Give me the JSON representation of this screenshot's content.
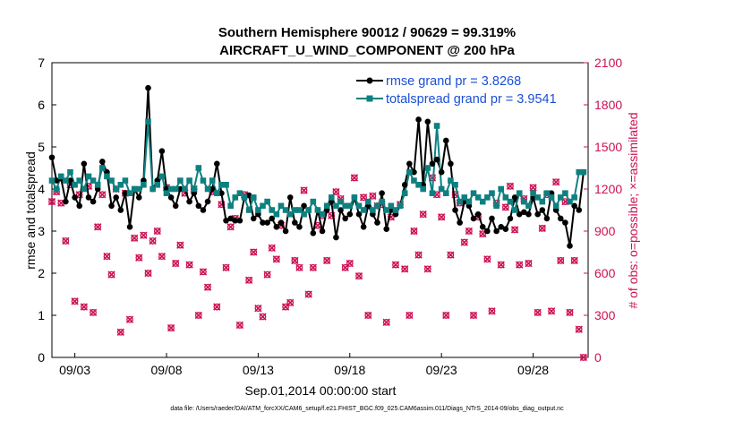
{
  "chart_data": {
    "type": "line",
    "title": "Southern Hemisphere 90012 / 90629 = 99.319%",
    "subtitle": "AIRCRAFT_U_WIND_COMPONENT @ 200 hPa",
    "xlabel": "Sep.01,2014 00:00:00 start",
    "ylabel": "rmse and totalspread",
    "ylabel_right": "# of obs: o=possible; ×=assimilated",
    "ylim": [
      0,
      7
    ],
    "ylim_right": [
      0,
      2100
    ],
    "yticks": [
      "0",
      "1",
      "2",
      "3",
      "4",
      "5",
      "6",
      "7"
    ],
    "yticks_right": [
      "0",
      "300",
      "600",
      "900",
      "1200",
      "1500",
      "1800",
      "2100"
    ],
    "xticks": [
      {
        "day": 3,
        "label": "09/03"
      },
      {
        "day": 8,
        "label": "09/08"
      },
      {
        "day": 13,
        "label": "09/13"
      },
      {
        "day": 18,
        "label": "09/18"
      },
      {
        "day": 23,
        "label": "09/23"
      },
      {
        "day": 28,
        "label": "09/28"
      }
    ],
    "xlim": [
      1.75,
      31.0
    ],
    "footnote": "data file: /Users/raeder/DAI/ATM_forcXX/CAM6_setup/f.e21.FHIST_BGC.f09_025.CAM6assim.011/Diags_NTrS_2014-09/obs_diag_output.nc",
    "colors": {
      "rmse": "#000000",
      "spread": "#0e8080",
      "obs": "#cc1155",
      "legend_text": "#1a4fd6"
    },
    "x": [
      1.75,
      2.0,
      2.25,
      2.5,
      2.75,
      3.0,
      3.25,
      3.5,
      3.75,
      4.0,
      4.25,
      4.5,
      4.75,
      5.0,
      5.25,
      5.5,
      5.75,
      6.0,
      6.25,
      6.5,
      6.75,
      7.0,
      7.25,
      7.5,
      7.75,
      8.0,
      8.25,
      8.5,
      8.75,
      9.0,
      9.25,
      9.5,
      9.75,
      10.0,
      10.25,
      10.5,
      10.75,
      11.0,
      11.25,
      11.5,
      11.75,
      12.0,
      12.25,
      12.5,
      12.75,
      13.0,
      13.25,
      13.5,
      13.75,
      14.0,
      14.25,
      14.5,
      14.75,
      15.0,
      15.25,
      15.5,
      15.75,
      16.0,
      16.25,
      16.5,
      16.75,
      17.0,
      17.25,
      17.5,
      17.75,
      18.0,
      18.25,
      18.5,
      18.75,
      19.0,
      19.25,
      19.5,
      19.75,
      20.0,
      20.25,
      20.5,
      20.75,
      21.0,
      21.25,
      21.5,
      21.75,
      22.0,
      22.25,
      22.5,
      22.75,
      23.0,
      23.25,
      23.5,
      23.75,
      24.0,
      24.25,
      24.5,
      24.75,
      25.0,
      25.25,
      25.5,
      25.75,
      26.0,
      26.25,
      26.5,
      26.75,
      27.0,
      27.25,
      27.5,
      27.75,
      28.0,
      28.25,
      28.5,
      28.75,
      29.0,
      29.25,
      29.5,
      29.75,
      30.0,
      30.25,
      30.5,
      30.75
    ],
    "series": [
      {
        "name": "rmse grand pr = 3.8268",
        "values": [
          4.75,
          4.2,
          4.25,
          3.7,
          4.2,
          3.8,
          3.6,
          4.6,
          3.8,
          3.7,
          4.0,
          4.65,
          4.4,
          3.6,
          3.8,
          3.5,
          3.9,
          3.1,
          4.0,
          3.8,
          4.2,
          6.4,
          4.0,
          4.2,
          4.9,
          4.0,
          3.8,
          3.6,
          4.0,
          4.0,
          3.7,
          3.9,
          3.6,
          3.5,
          3.7,
          4.0,
          4.6,
          3.9,
          3.25,
          3.3,
          3.25,
          3.25,
          3.8,
          3.85,
          3.3,
          3.4,
          3.2,
          3.2,
          3.3,
          3.1,
          3.2,
          3.0,
          3.8,
          3.2,
          3.1,
          3.6,
          3.5,
          2.95,
          3.5,
          3.0,
          3.5,
          3.7,
          2.85,
          3.5,
          3.3,
          3.4,
          3.8,
          3.4,
          3.1,
          3.6,
          3.4,
          3.2,
          3.9,
          3.05,
          3.5,
          3.4,
          3.6,
          4.1,
          4.6,
          4.4,
          5.65,
          4.1,
          5.6,
          4.6,
          4.7,
          4.4,
          5.15,
          4.6,
          3.5,
          3.2,
          3.7,
          3.6,
          3.3,
          3.4,
          3.1,
          3.0,
          3.3,
          3.0,
          3.1,
          3.05,
          3.3,
          3.8,
          3.4,
          3.45,
          3.4,
          3.8,
          3.4,
          3.5,
          3.3,
          3.9,
          3.5,
          3.3,
          3.2,
          2.65,
          3.6,
          3.5,
          4.4
        ]
      },
      {
        "name": "totalspread grand pr = 3.9541",
        "values": [
          4.2,
          4.0,
          4.3,
          4.2,
          4.4,
          4.1,
          4.2,
          4.0,
          4.3,
          4.2,
          4.1,
          4.5,
          4.3,
          4.2,
          4.0,
          4.1,
          4.2,
          3.9,
          4.0,
          4.0,
          4.1,
          5.6,
          4.0,
          4.1,
          4.3,
          3.9,
          4.0,
          4.0,
          4.2,
          4.0,
          4.2,
          4.0,
          4.5,
          4.2,
          4.0,
          4.2,
          3.9,
          4.1,
          4.1,
          3.6,
          3.8,
          3.9,
          3.8,
          3.5,
          3.8,
          3.5,
          3.6,
          3.7,
          3.5,
          3.4,
          3.6,
          3.5,
          3.4,
          3.5,
          3.5,
          3.4,
          3.5,
          3.7,
          3.5,
          3.4,
          3.6,
          3.8,
          3.6,
          3.7,
          3.6,
          3.6,
          3.8,
          3.6,
          3.5,
          3.7,
          3.5,
          3.6,
          3.7,
          3.5,
          3.6,
          3.5,
          3.6,
          3.9,
          4.4,
          4.2,
          4.1,
          4.0,
          4.5,
          3.9,
          5.5,
          4.0,
          3.9,
          4.2,
          4.1,
          3.7,
          3.8,
          3.7,
          3.9,
          3.8,
          3.7,
          3.8,
          3.9,
          3.6,
          4.0,
          3.8,
          3.7,
          3.5,
          3.9,
          3.7,
          3.6,
          3.9,
          3.8,
          3.7,
          3.9,
          3.8,
          3.6,
          3.8,
          3.9,
          3.7,
          3.8,
          4.4,
          4.4
        ]
      }
    ],
    "obs_series": {
      "name": "# of obs (possible / assimilated)",
      "values": [
        1110,
        1180,
        1100,
        830,
        1230,
        400,
        1160,
        360,
        1220,
        320,
        930,
        1160,
        720,
        590,
        1200,
        180,
        1170,
        270,
        850,
        710,
        870,
        600,
        830,
        900,
        720,
        1210,
        210,
        670,
        800,
        1170,
        660,
        1200,
        300,
        610,
        500,
        1180,
        360,
        1090,
        640,
        930,
        990,
        230,
        1160,
        550,
        750,
        350,
        290,
        590,
        780,
        700,
        940,
        360,
        390,
        690,
        640,
        1190,
        450,
        640,
        940,
        1010,
        690,
        1010,
        1180,
        1130,
        640,
        670,
        1280,
        580,
        1140,
        300,
        1150,
        1080,
        1090,
        250,
        1000,
        660,
        1090,
        630,
        300,
        900,
        730,
        1020,
        630,
        1280,
        1160,
        1000,
        300,
        730,
        1160,
        1100,
        820,
        900,
        300,
        1000,
        880,
        700,
        330,
        1100,
        660,
        1070,
        1220,
        910,
        660,
        1130,
        670,
        1210,
        320,
        920,
        1160,
        330,
        1250,
        690,
        1110,
        320,
        690,
        200,
        0
      ]
    }
  },
  "legend": {
    "rmse": "rmse grand pr = 3.8268",
    "spread": "totalspread grand pr = 3.9541"
  }
}
